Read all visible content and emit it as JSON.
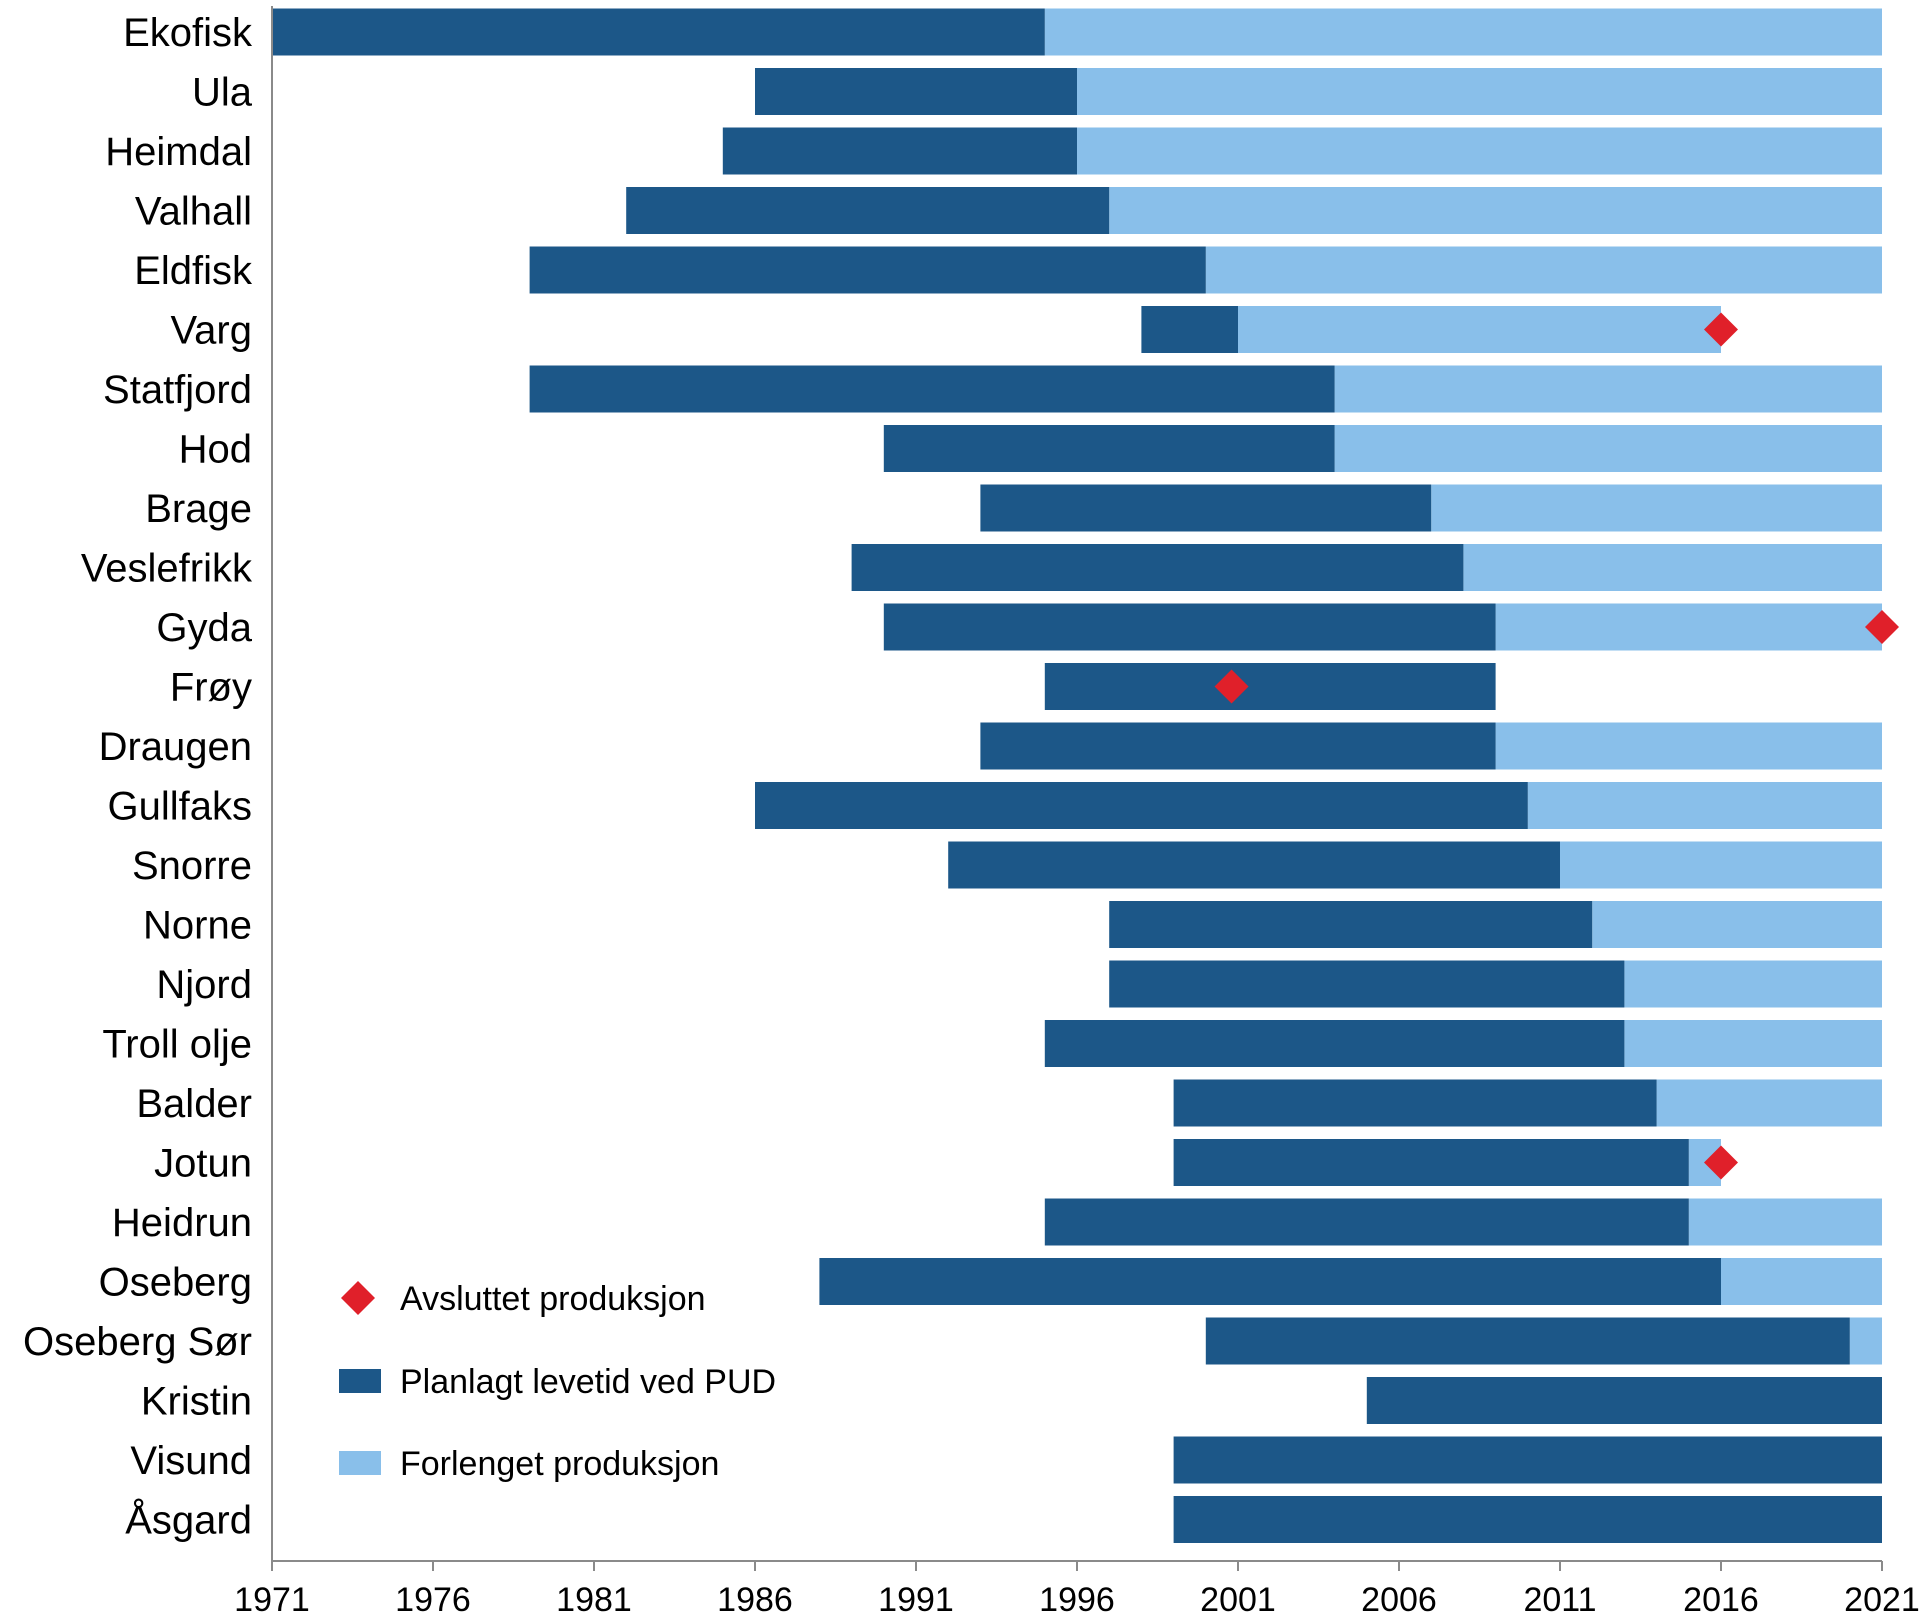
{
  "chart_data": {
    "type": "bar",
    "orientation": "horizontal-range",
    "xlim": [
      1971,
      2021
    ],
    "xticks": [
      "1971",
      "1976",
      "1981",
      "1986",
      "1991",
      "1996",
      "2001",
      "2006",
      "2011",
      "2016",
      "2021"
    ],
    "grid": false,
    "legend_placement": "bottom-left",
    "colors": {
      "planned": "#1c5788",
      "extended": "#89bfea",
      "ended": "#e0202a"
    },
    "legend": [
      {
        "key": "ended",
        "label": "Avsluttet produksjon",
        "marker": "diamond"
      },
      {
        "key": "planned",
        "label": "Planlagt levetid ved PUD",
        "marker": "square"
      },
      {
        "key": "extended",
        "label": "Forlenget produksjon",
        "marker": "square"
      }
    ],
    "fields": [
      {
        "name": "Ekofisk",
        "start": 1971,
        "planned_end": 1995,
        "extended_end": 2021,
        "ended": null
      },
      {
        "name": "Ula",
        "start": 1986,
        "planned_end": 1996,
        "extended_end": 2021,
        "ended": null
      },
      {
        "name": "Heimdal",
        "start": 1985,
        "planned_end": 1996,
        "extended_end": 2021,
        "ended": null
      },
      {
        "name": "Valhall",
        "start": 1982,
        "planned_end": 1997,
        "extended_end": 2021,
        "ended": null
      },
      {
        "name": "Eldfisk",
        "start": 1979,
        "planned_end": 2000,
        "extended_end": 2021,
        "ended": null
      },
      {
        "name": "Varg",
        "start": 1998,
        "planned_end": 2001,
        "extended_end": 2016,
        "ended": 2016
      },
      {
        "name": "Statfjord",
        "start": 1979,
        "planned_end": 2004,
        "extended_end": 2021,
        "ended": null
      },
      {
        "name": "Hod",
        "start": 1990,
        "planned_end": 2004,
        "extended_end": 2021,
        "ended": null
      },
      {
        "name": "Brage",
        "start": 1993,
        "planned_end": 2007,
        "extended_end": 2021,
        "ended": null
      },
      {
        "name": "Veslefrikk",
        "start": 1989,
        "planned_end": 2008,
        "extended_end": 2021,
        "ended": null
      },
      {
        "name": "Gyda",
        "start": 1990,
        "planned_end": 2009,
        "extended_end": 2021,
        "ended": 2021
      },
      {
        "name": "Frøy",
        "start": 1995,
        "planned_end": 2009,
        "extended_end": 2009,
        "ended": 2000.8
      },
      {
        "name": "Draugen",
        "start": 1993,
        "planned_end": 2009,
        "extended_end": 2021,
        "ended": null
      },
      {
        "name": "Gullfaks",
        "start": 1986,
        "planned_end": 2010,
        "extended_end": 2021,
        "ended": null
      },
      {
        "name": "Snorre",
        "start": 1992,
        "planned_end": 2011,
        "extended_end": 2021,
        "ended": null
      },
      {
        "name": "Norne",
        "start": 1997,
        "planned_end": 2012,
        "extended_end": 2021,
        "ended": null
      },
      {
        "name": "Njord",
        "start": 1997,
        "planned_end": 2013,
        "extended_end": 2021,
        "ended": null
      },
      {
        "name": "Troll olje",
        "start": 1995,
        "planned_end": 2013,
        "extended_end": 2021,
        "ended": null
      },
      {
        "name": "Balder",
        "start": 1999,
        "planned_end": 2014,
        "extended_end": 2021,
        "ended": null
      },
      {
        "name": "Jotun",
        "start": 1999,
        "planned_end": 2015,
        "extended_end": 2016,
        "ended": 2016
      },
      {
        "name": "Heidrun",
        "start": 1995,
        "planned_end": 2015,
        "extended_end": 2021,
        "ended": null
      },
      {
        "name": "Oseberg",
        "start": 1988,
        "planned_end": 2016,
        "extended_end": 2021,
        "ended": null
      },
      {
        "name": "Oseberg Sør",
        "start": 2000,
        "planned_end": 2020,
        "extended_end": 2021,
        "ended": null
      },
      {
        "name": "Kristin",
        "start": 2005,
        "planned_end": 2021,
        "extended_end": 2021,
        "ended": null
      },
      {
        "name": "Visund",
        "start": 1999,
        "planned_end": 2021,
        "extended_end": 2021,
        "ended": null
      },
      {
        "name": "Åsgard",
        "start": 1999,
        "planned_end": 2021,
        "extended_end": 2021,
        "ended": null
      }
    ]
  }
}
